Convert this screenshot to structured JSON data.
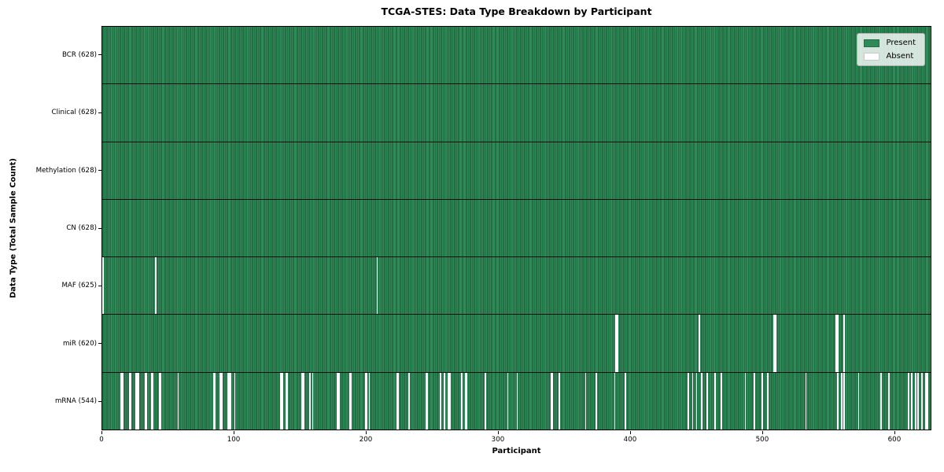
{
  "colors": {
    "present": "#2E8B57",
    "absent": "#FFFFFF",
    "bar_edge": "#1C5233",
    "legend_background": "#FFFFFF",
    "text": "#000000"
  },
  "chart_data": {
    "type": "heatmap",
    "title": "TCGA-STES: Data Type Breakdown by Participant",
    "xlabel": "Participant",
    "ylabel": "Data Type (Total Sample Count)",
    "xlim": [
      0,
      628
    ],
    "total_participants": 628,
    "x_ticks": [
      0,
      100,
      200,
      300,
      400,
      500,
      600
    ],
    "grid": false,
    "legend": {
      "entries": [
        "Present",
        "Absent"
      ],
      "position": "upper right"
    },
    "cell_values": {
      "present": 1,
      "absent": 0
    },
    "rows": [
      {
        "name": "BCR",
        "label": "BCR (628)",
        "present_count": 628,
        "absent_count": 0,
        "absent_participants": []
      },
      {
        "name": "Clinical",
        "label": "Clinical (628)",
        "present_count": 628,
        "absent_count": 0,
        "absent_participants": []
      },
      {
        "name": "Methylation",
        "label": "Methylation (628)",
        "present_count": 628,
        "absent_count": 0,
        "absent_participants": []
      },
      {
        "name": "CN",
        "label": "CN (628)",
        "present_count": 628,
        "absent_count": 0,
        "absent_participants": []
      },
      {
        "name": "MAF",
        "label": "MAF (625)",
        "present_count": 625,
        "absent_count": 3,
        "absent_participants": [
          0,
          40,
          208
        ]
      },
      {
        "name": "miR",
        "label": "miR (620)",
        "present_count": 620,
        "absent_count": 8,
        "absent_participants": [
          389,
          390,
          452,
          509,
          510,
          556,
          557,
          562
        ]
      },
      {
        "name": "mRNA",
        "label": "mRNA (544)",
        "present_count": 544,
        "absent_count": 84,
        "absent_participants": [
          14,
          15,
          20,
          21,
          25,
          26,
          27,
          32,
          33,
          37,
          38,
          43,
          44,
          57,
          84,
          85,
          89,
          90,
          95,
          96,
          97,
          100,
          135,
          136,
          139,
          140,
          151,
          152,
          157,
          159,
          178,
          179,
          187,
          188,
          199,
          200,
          202,
          223,
          224,
          232,
          245,
          246,
          256,
          259,
          262,
          263,
          272,
          275,
          276,
          290,
          307,
          314,
          340,
          341,
          346,
          366,
          374,
          388,
          396,
          444,
          447,
          450,
          454,
          458,
          464,
          469,
          487,
          494,
          500,
          504,
          533,
          557,
          560,
          562,
          573,
          590,
          596,
          611,
          613,
          616,
          618,
          621,
          624,
          625
        ]
      }
    ]
  }
}
